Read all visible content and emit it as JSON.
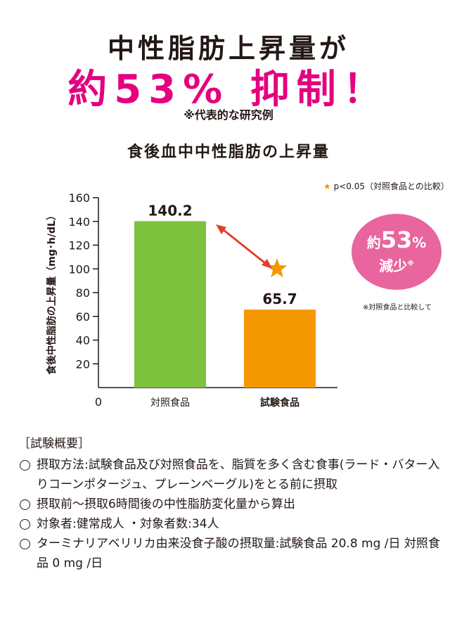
{
  "headline": "中性脂肪上昇量が",
  "big_claim": "約53% 抑制！",
  "representative_note": "※代表的な研究例",
  "chart_title": "食後血中中性脂肪の上昇量",
  "significance_note": "p<0.05（対照食品との比較）",
  "circle": {
    "prefix": "約",
    "value": "53",
    "unit": "%",
    "word": "減少",
    "mark": "※"
  },
  "circle_note": "※対照食品と比較して",
  "summary": {
    "heading": "［試験概要］",
    "items": [
      "摂取方法:試験食品及び対照食品を、脂質を多く含む食事(ラード・バター入りコーンポタージュ、プレーンベーグル)をとる前に摂取",
      "摂取前～摂取6時間後の中性脂肪変化量から算出",
      "対象者:健常成人 ・対象者数:34人",
      "ターミナリアベリリカ由来没食子酸の摂取量:試験食品 20.8 mg /日 対照食品 0 mg /日"
    ]
  },
  "colors": {
    "accent": "#e4007f",
    "control_bar": "#7dc13d",
    "test_bar": "#f39800",
    "circle": "#e8659d",
    "arrow": "#e0402a"
  },
  "chart_data": {
    "type": "bar",
    "categories": [
      "対照食品",
      "試験食品"
    ],
    "values": [
      140.2,
      65.7
    ],
    "value_labels": [
      "140.2",
      "65.7"
    ],
    "ylabel": "食後中性脂肪の上昇量（mg･h/dL）",
    "ylim": [
      0,
      160
    ],
    "yticks": [
      0,
      20,
      40,
      60,
      80,
      100,
      120,
      140,
      160
    ],
    "significance_marker": "star",
    "grid": false
  }
}
